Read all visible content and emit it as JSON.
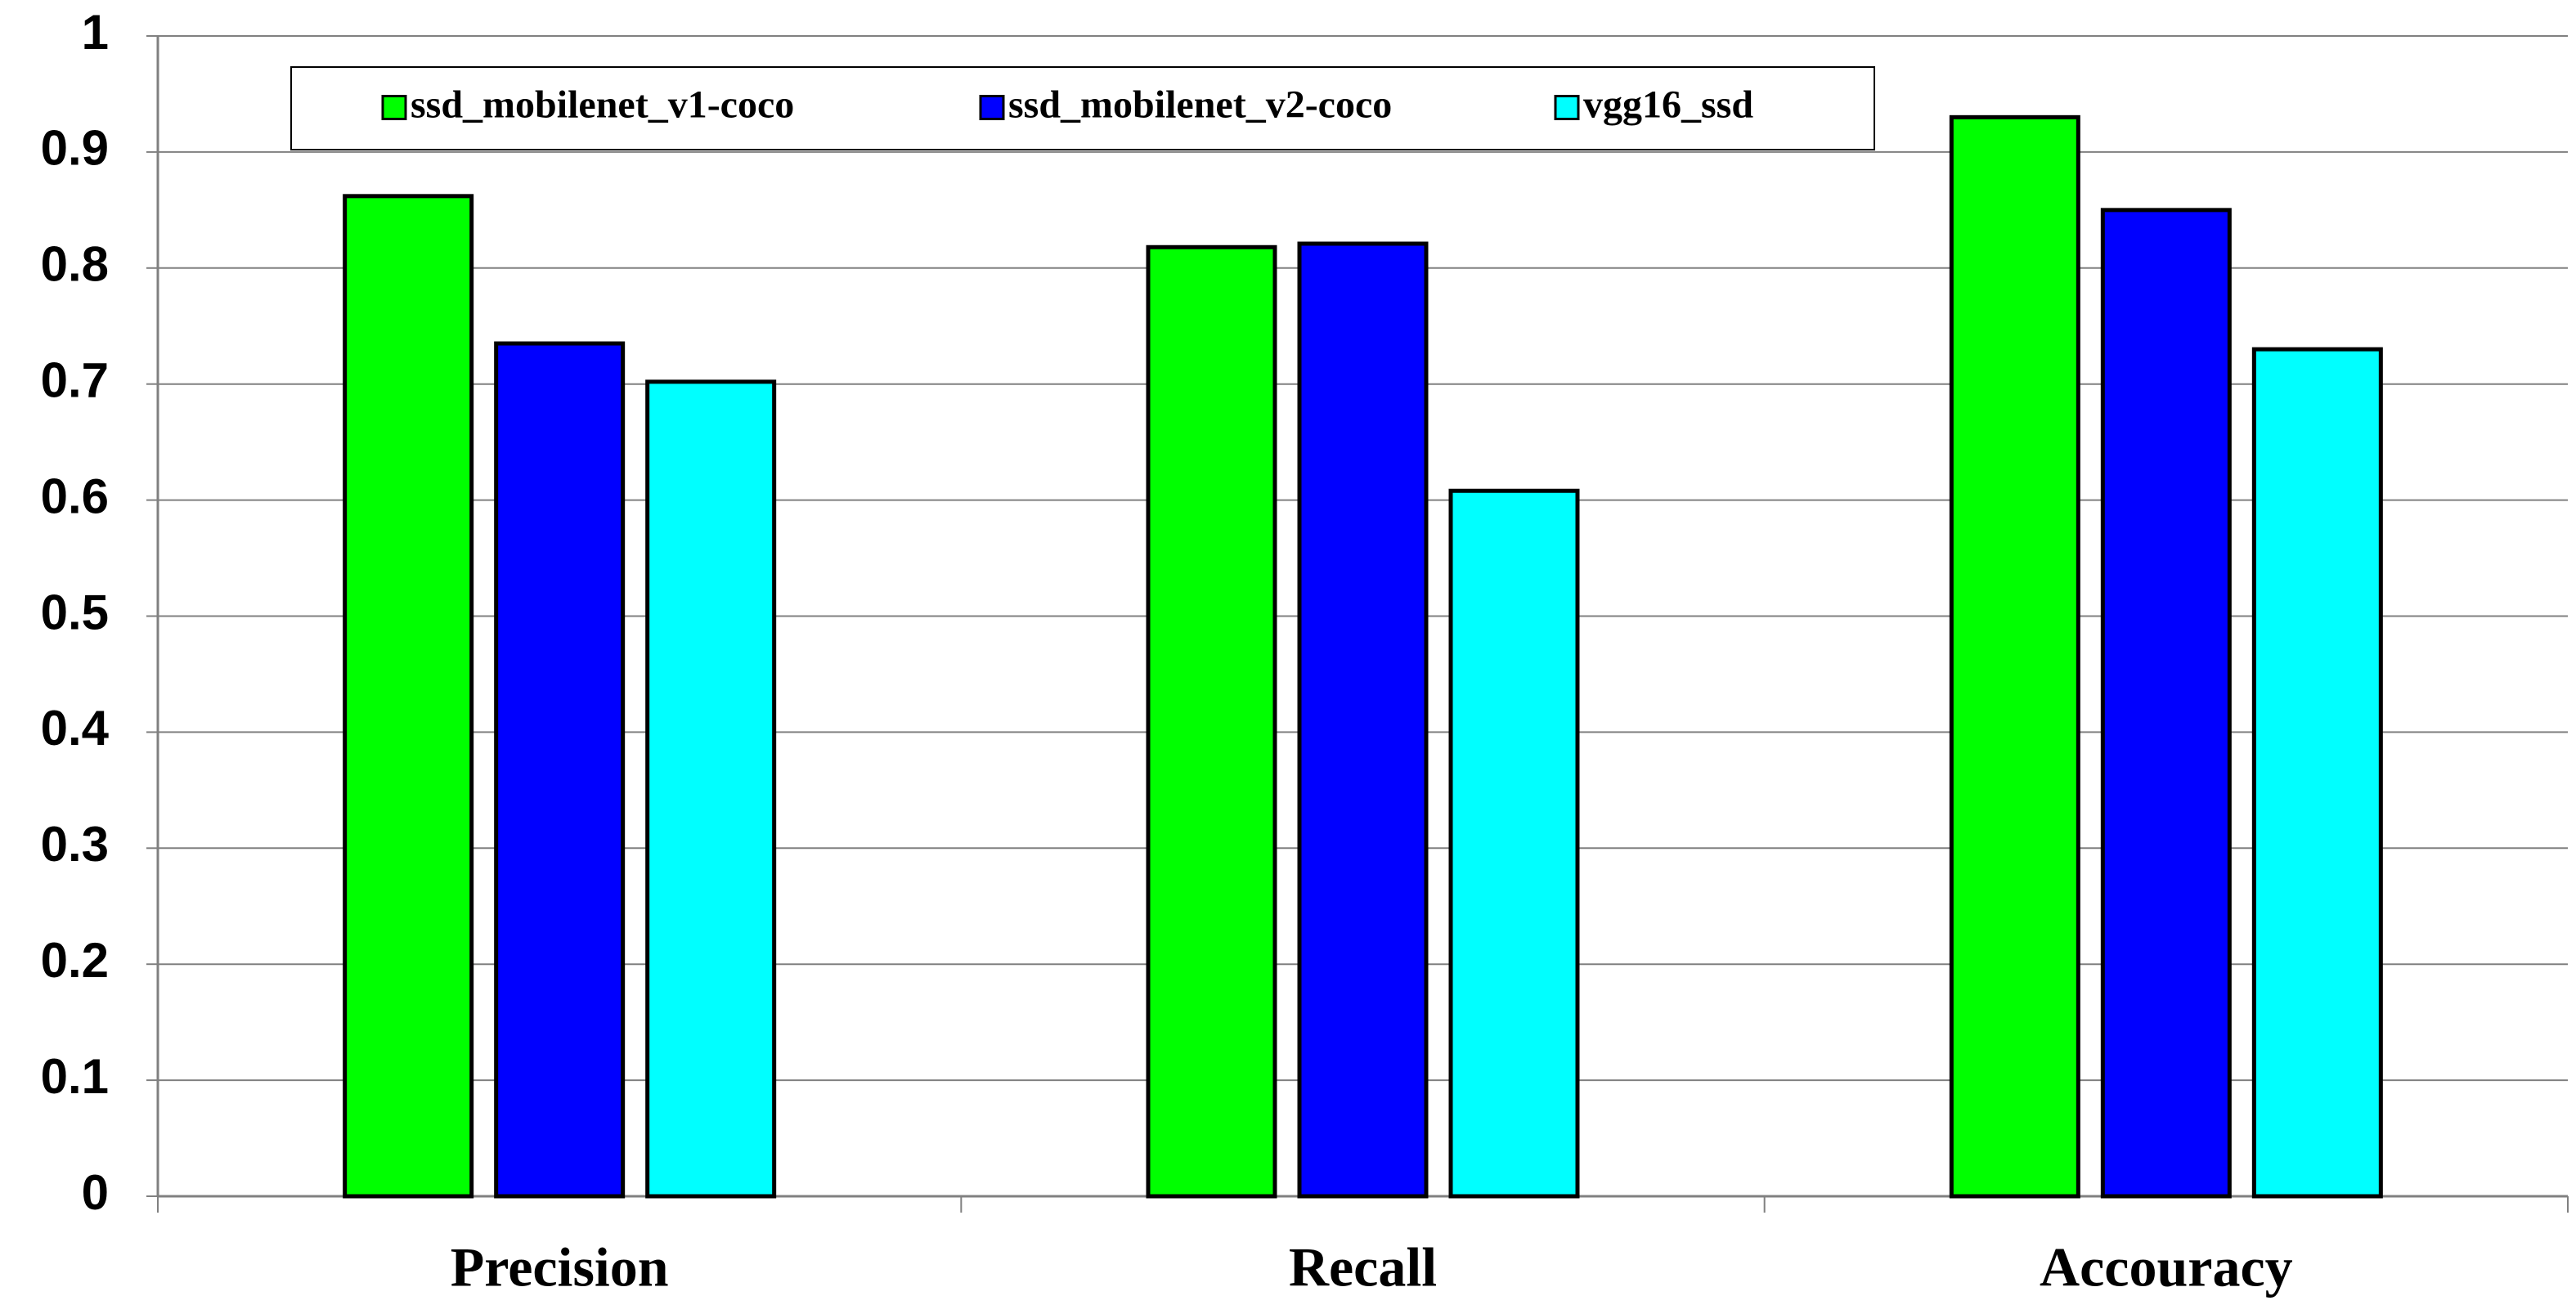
{
  "chart_data": {
    "type": "bar",
    "categories": [
      "Precision",
      "Recall",
      "Accouracy"
    ],
    "series": [
      {
        "name": "ssd_mobilenet_v1-coco",
        "color": "#00ff00",
        "values": [
          0.862,
          0.818,
          0.93
        ]
      },
      {
        "name": "ssd_mobilenet_v2-coco",
        "color": "#0000ff",
        "values": [
          0.735,
          0.821,
          0.85
        ]
      },
      {
        "name": "vgg16_ssd",
        "color": "#00ffff",
        "values": [
          0.702,
          0.608,
          0.73
        ]
      }
    ],
    "ylim": [
      0,
      1
    ],
    "yticks": [
      0,
      0.1,
      0.2,
      0.3,
      0.4,
      0.5,
      0.6,
      0.7,
      0.8,
      0.9,
      1
    ],
    "grid": true,
    "legend": "top"
  }
}
